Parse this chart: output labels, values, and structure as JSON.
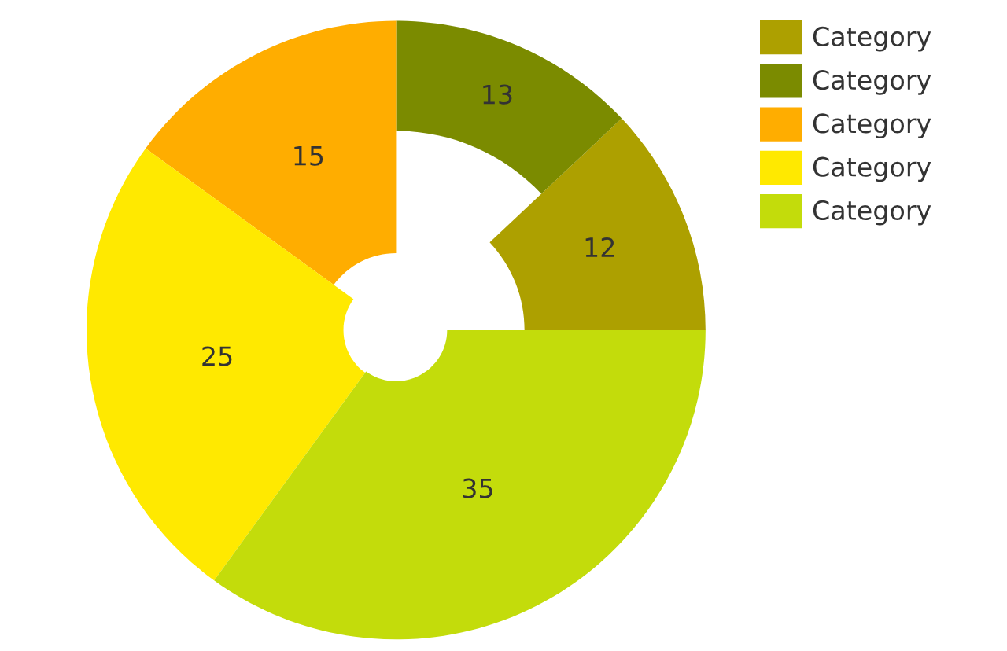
{
  "chart_data": {
    "type": "donut",
    "categories": [
      "Category",
      "Category",
      "Category",
      "Category",
      "Category"
    ],
    "values": [
      12,
      13,
      15,
      25,
      35
    ],
    "colors": [
      "#ada000",
      "#7b8b00",
      "#ffad00",
      "#ffe900",
      "#c3dc0b"
    ],
    "data_labels": true,
    "legend": "top right"
  }
}
